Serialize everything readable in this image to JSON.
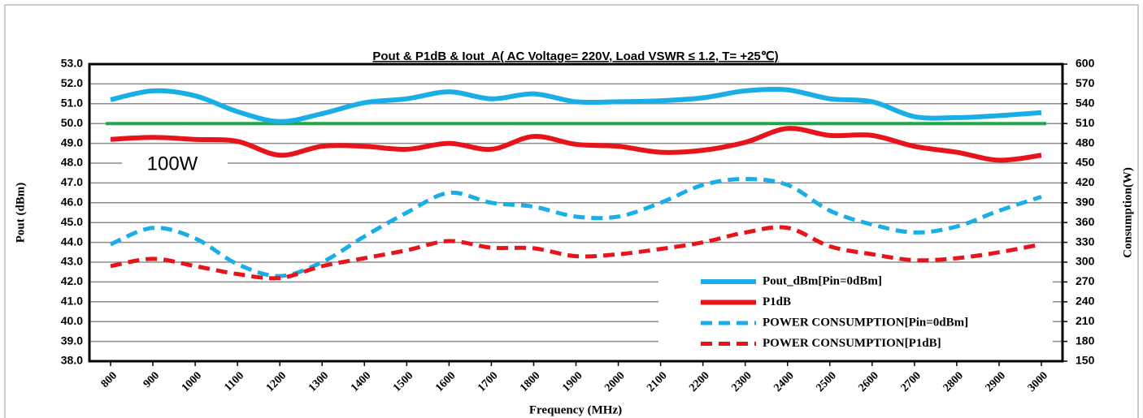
{
  "chart_data": {
    "type": "line",
    "title": "Pout & P1dB & Iout_A( AC Voltage= 220V, Load VSWR ≤ 1.2, T= +25℃)",
    "x_label": "Frequency (MHz)",
    "y_label": "Pout (dBm)",
    "y2_label": "Consumption(W)",
    "categories": [
      "800",
      "900",
      "1000",
      "1100",
      "1200",
      "1300",
      "1400",
      "1500",
      "1600",
      "1700",
      "1800",
      "1900",
      "2000",
      "2100",
      "2200",
      "2300",
      "2400",
      "2500",
      "2600",
      "2700",
      "2800",
      "2900",
      "3000"
    ],
    "ylim": [
      38,
      53
    ],
    "yticks": [
      {
        "value": 38,
        "label": "38.0"
      },
      {
        "value": 39,
        "label": "39.0"
      },
      {
        "value": 40,
        "label": "40.0"
      },
      {
        "value": 41,
        "label": "41.0"
      },
      {
        "value": 42,
        "label": "42.0"
      },
      {
        "value": 43,
        "label": "43.0"
      },
      {
        "value": 44,
        "label": "44.0"
      },
      {
        "value": 45,
        "label": "45.0"
      },
      {
        "value": 46,
        "label": "46.0"
      },
      {
        "value": 47,
        "label": "47.0"
      },
      {
        "value": 48,
        "label": "48.0"
      },
      {
        "value": 49,
        "label": "49.0"
      },
      {
        "value": 50,
        "label": "50.0"
      },
      {
        "value": 51,
        "label": "51.0"
      },
      {
        "value": 52,
        "label": "52.0"
      },
      {
        "value": 53,
        "label": "53.0"
      }
    ],
    "y2lim": [
      150,
      600
    ],
    "y2ticks": [
      150,
      180,
      210,
      240,
      270,
      300,
      330,
      360,
      390,
      420,
      450,
      480,
      510,
      540,
      570,
      600
    ],
    "grid": true,
    "legend": "bottom-right",
    "reference_line": {
      "value": 50,
      "label": "100W",
      "color": "#1fa84a"
    },
    "series": [
      {
        "name": "Pout_dBm[Pin=0dBm]",
        "color": "#1aaee6",
        "style": "solid",
        "axis": "y",
        "values": [
          51.2,
          51.65,
          51.4,
          50.6,
          50.1,
          50.5,
          51.05,
          51.25,
          51.6,
          51.25,
          51.5,
          51.1,
          51.1,
          51.15,
          51.3,
          51.65,
          51.7,
          51.25,
          51.1,
          50.35,
          50.3,
          50.4,
          50.55
        ]
      },
      {
        "name": "P1dB",
        "color": "#e8141b",
        "style": "solid",
        "axis": "y",
        "values": [
          49.2,
          49.3,
          49.2,
          49.1,
          48.4,
          48.85,
          48.85,
          48.7,
          49.0,
          48.7,
          49.35,
          48.95,
          48.85,
          48.55,
          48.65,
          49.05,
          49.75,
          49.4,
          49.4,
          48.85,
          48.55,
          48.15,
          48.4
        ]
      },
      {
        "name": "POWER CONSUMPTION[Pin=0dBm]",
        "color": "#1aaee6",
        "style": "dashed",
        "axis": "y2",
        "values": [
          327,
          352,
          336,
          297,
          279,
          300,
          339,
          375,
          405,
          390,
          384,
          369,
          369,
          390,
          417,
          426,
          417,
          378,
          357,
          345,
          354,
          378,
          399
        ]
      },
      {
        "name": "POWER CONSUMPTION[P1dB]",
        "color": "#e8141b",
        "style": "dashed",
        "axis": "y2",
        "values": [
          294,
          305,
          294,
          282,
          276,
          294,
          306,
          318,
          332,
          322,
          321,
          309,
          312,
          320,
          330,
          345,
          352,
          324,
          312,
          303,
          306,
          315,
          327
        ]
      }
    ]
  }
}
